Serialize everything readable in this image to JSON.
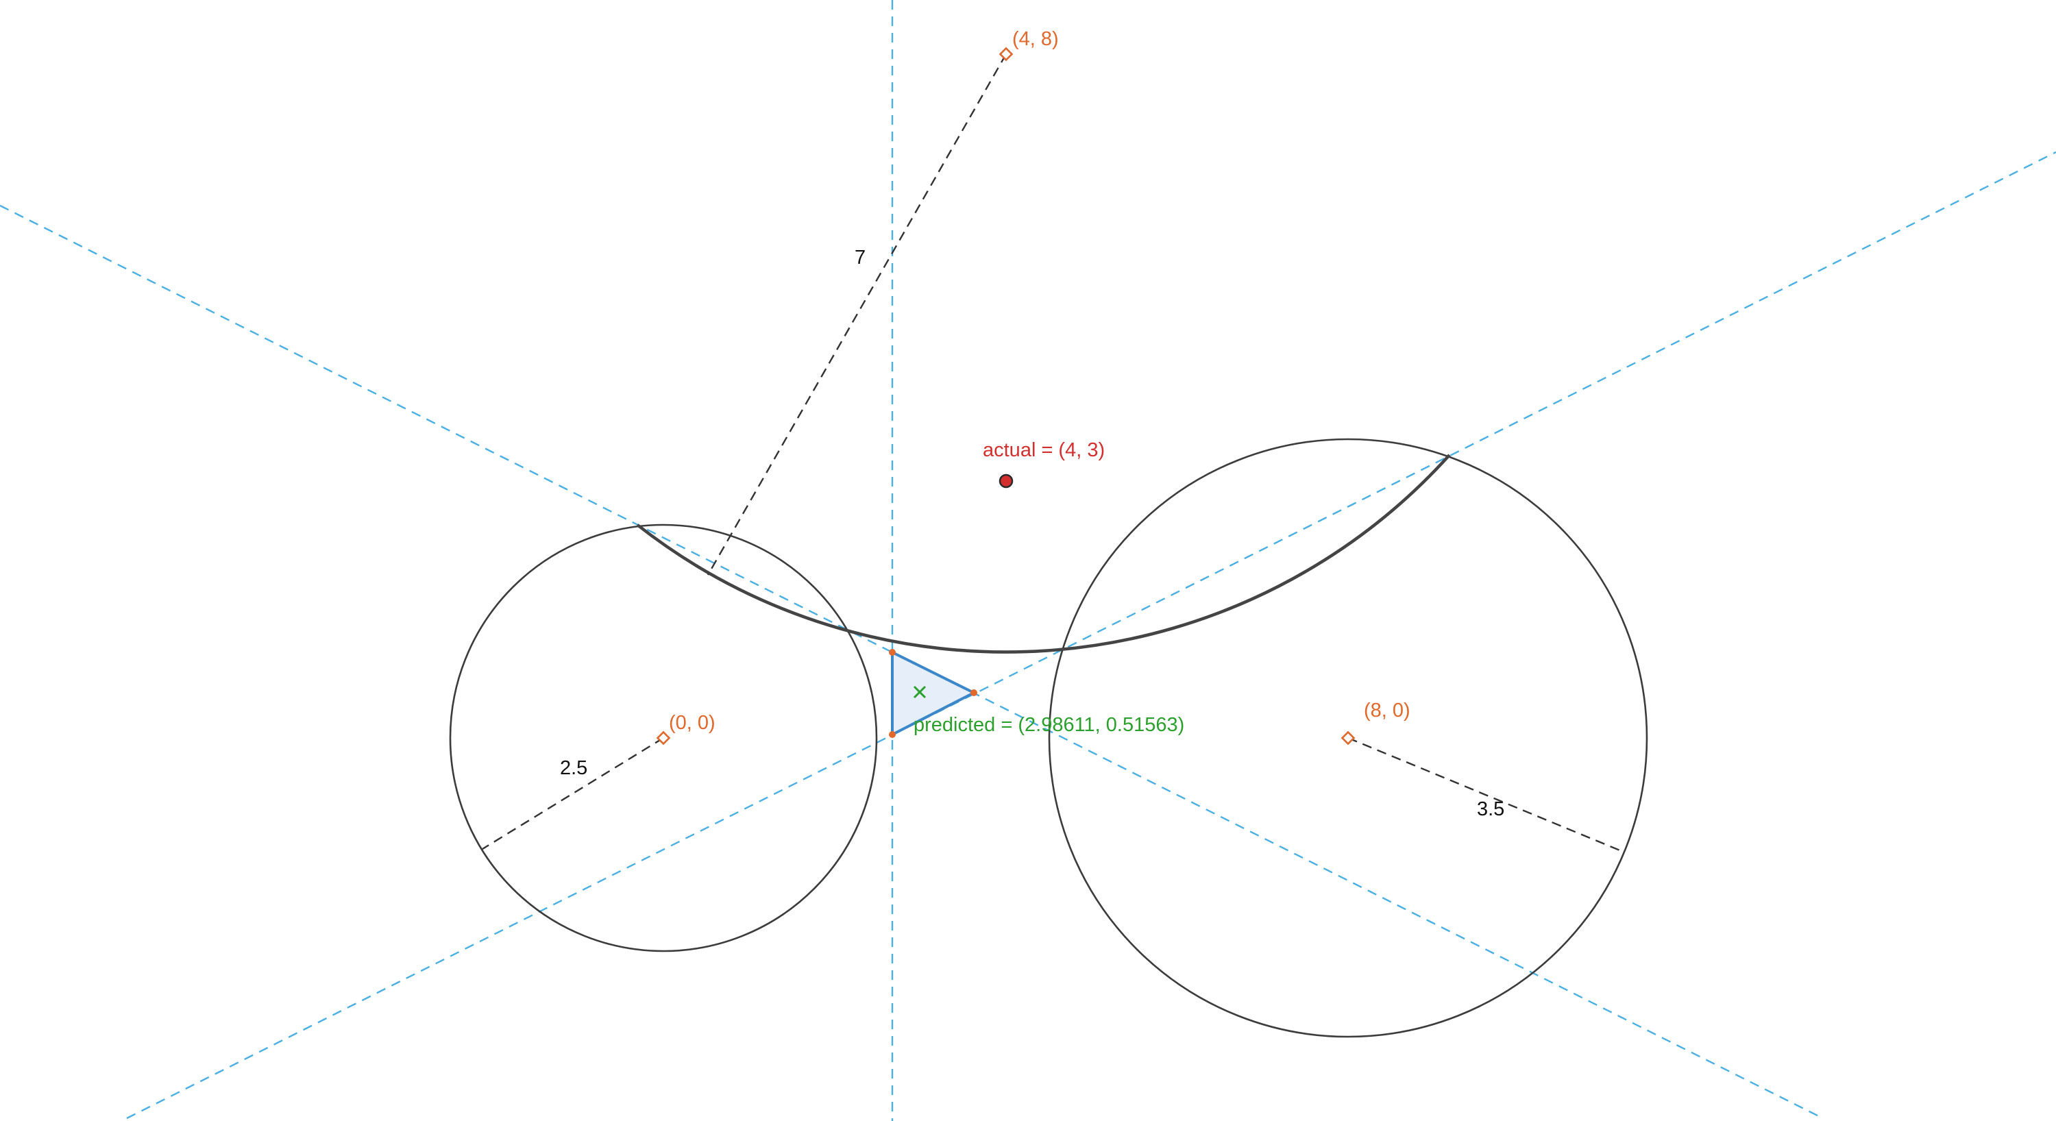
{
  "anchors": [
    {
      "name": "anchor-left",
      "label": "(0, 0)",
      "x": 0,
      "y": 0,
      "distance": 2.5,
      "distance_label": "2.5"
    },
    {
      "name": "anchor-right",
      "label": "(8, 0)",
      "x": 8,
      "y": 0,
      "distance": 3.5,
      "distance_label": "3.5"
    },
    {
      "name": "anchor-top",
      "label": "(4, 8)",
      "x": 4,
      "y": 8,
      "distance": 7,
      "distance_label": "7"
    }
  ],
  "actual": {
    "label": "actual = (4, 3)",
    "x": 4,
    "y": 3
  },
  "predicted": {
    "label": "predicted = (2.98611, 0.51563)",
    "x": 2.98611,
    "y": 0.51563
  },
  "colors": {
    "anchor": "#e2682c",
    "actual": "#d32f2f",
    "predicted": "#2ca02c",
    "guide": "#4ab0e3",
    "circle": "#3c3c3c",
    "region": "#3b87c9"
  },
  "icons": {
    "predicted_marker": "cross-icon",
    "actual_marker": "filled-dot-icon",
    "anchor_marker": "diamond-icon"
  }
}
